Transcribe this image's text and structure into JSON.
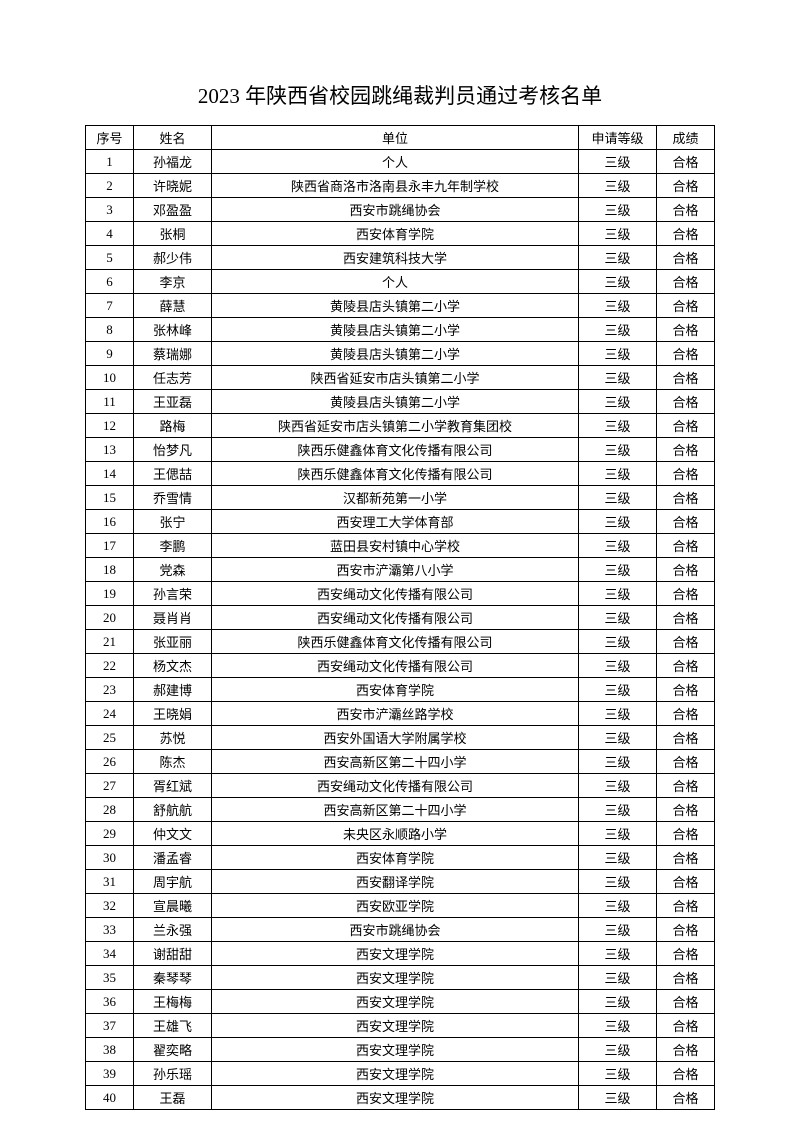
{
  "title": "2023 年陕西省校园跳绳裁判员通过考核名单",
  "columns": [
    "序号",
    "姓名",
    "单位",
    "申请等级",
    "成绩"
  ],
  "rows": [
    [
      "1",
      "孙福龙",
      "个人",
      "三级",
      "合格"
    ],
    [
      "2",
      "许晓妮",
      "陕西省商洛市洛南县永丰九年制学校",
      "三级",
      "合格"
    ],
    [
      "3",
      "邓盈盈",
      "西安市跳绳协会",
      "三级",
      "合格"
    ],
    [
      "4",
      "张桐",
      "西安体育学院",
      "三级",
      "合格"
    ],
    [
      "5",
      "郝少伟",
      "西安建筑科技大学",
      "三级",
      "合格"
    ],
    [
      "6",
      "李京",
      "个人",
      "三级",
      "合格"
    ],
    [
      "7",
      "薛慧",
      "黄陵县店头镇第二小学",
      "三级",
      "合格"
    ],
    [
      "8",
      "张林峰",
      "黄陵县店头镇第二小学",
      "三级",
      "合格"
    ],
    [
      "9",
      "蔡瑞娜",
      "黄陵县店头镇第二小学",
      "三级",
      "合格"
    ],
    [
      "10",
      "任志芳",
      "陕西省延安市店头镇第二小学",
      "三级",
      "合格"
    ],
    [
      "11",
      "王亚磊",
      "黄陵县店头镇第二小学",
      "三级",
      "合格"
    ],
    [
      "12",
      "路梅",
      "陕西省延安市店头镇第二小学教育集团校",
      "三级",
      "合格"
    ],
    [
      "13",
      "怡梦凡",
      "陕西乐健鑫体育文化传播有限公司",
      "三级",
      "合格"
    ],
    [
      "14",
      "王偲喆",
      "陕西乐健鑫体育文化传播有限公司",
      "三级",
      "合格"
    ],
    [
      "15",
      "乔雪情",
      "汉都新苑第一小学",
      "三级",
      "合格"
    ],
    [
      "16",
      "张宁",
      "西安理工大学体育部",
      "三级",
      "合格"
    ],
    [
      "17",
      "李鹏",
      "蓝田县安村镇中心学校",
      "三级",
      "合格"
    ],
    [
      "18",
      "党森",
      "西安市浐灞第八小学",
      "三级",
      "合格"
    ],
    [
      "19",
      "孙言荣",
      "西安绳动文化传播有限公司",
      "三级",
      "合格"
    ],
    [
      "20",
      "聂肖肖",
      "西安绳动文化传播有限公司",
      "三级",
      "合格"
    ],
    [
      "21",
      "张亚丽",
      "陕西乐健鑫体育文化传播有限公司",
      "三级",
      "合格"
    ],
    [
      "22",
      "杨文杰",
      "西安绳动文化传播有限公司",
      "三级",
      "合格"
    ],
    [
      "23",
      "郝建博",
      "西安体育学院",
      "三级",
      "合格"
    ],
    [
      "24",
      "王晓娟",
      "西安市浐灞丝路学校",
      "三级",
      "合格"
    ],
    [
      "25",
      "苏悦",
      "西安外国语大学附属学校",
      "三级",
      "合格"
    ],
    [
      "26",
      "陈杰",
      "西安高新区第二十四小学",
      "三级",
      "合格"
    ],
    [
      "27",
      "胥红斌",
      "西安绳动文化传播有限公司",
      "三级",
      "合格"
    ],
    [
      "28",
      "舒航航",
      "西安高新区第二十四小学",
      "三级",
      "合格"
    ],
    [
      "29",
      "仲文文",
      "未央区永顺路小学",
      "三级",
      "合格"
    ],
    [
      "30",
      "潘孟睿",
      "西安体育学院",
      "三级",
      "合格"
    ],
    [
      "31",
      "周宇航",
      "西安翻译学院",
      "三级",
      "合格"
    ],
    [
      "32",
      "宣晨曦",
      "西安欧亚学院",
      "三级",
      "合格"
    ],
    [
      "33",
      "兰永强",
      "西安市跳绳协会",
      "三级",
      "合格"
    ],
    [
      "34",
      "谢甜甜",
      "西安文理学院",
      "三级",
      "合格"
    ],
    [
      "35",
      "秦琴琴",
      "西安文理学院",
      "三级",
      "合格"
    ],
    [
      "36",
      "王梅梅",
      "西安文理学院",
      "三级",
      "合格"
    ],
    [
      "37",
      "王雄飞",
      "西安文理学院",
      "三级",
      "合格"
    ],
    [
      "38",
      "翟奕略",
      "西安文理学院",
      "三级",
      "合格"
    ],
    [
      "39",
      "孙乐瑶",
      "西安文理学院",
      "三级",
      "合格"
    ],
    [
      "40",
      "王磊",
      "西安文理学院",
      "三级",
      "合格"
    ]
  ]
}
